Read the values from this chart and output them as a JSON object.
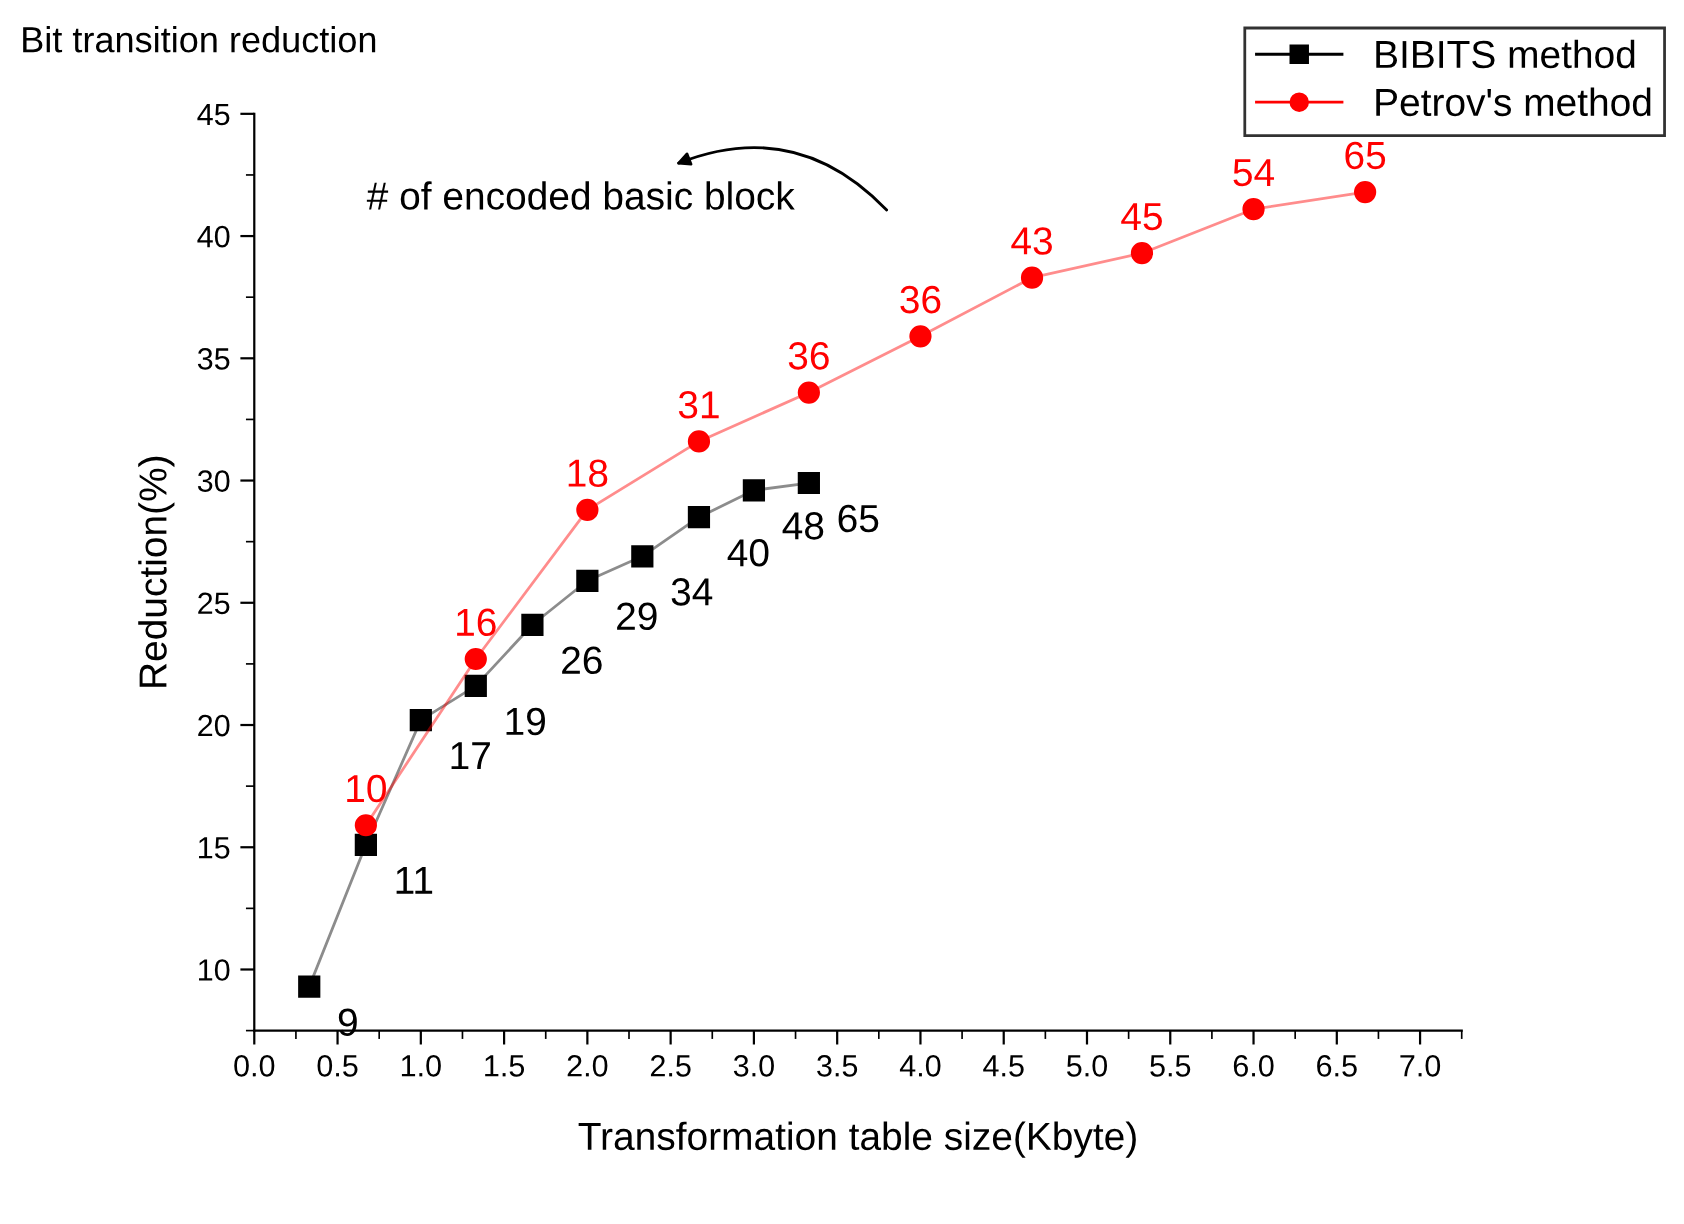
{
  "chart_data": {
    "type": "line",
    "title": "Bit transition reduction",
    "xlabel": "Transformation table size(Kbyte)",
    "ylabel": "Reduction(%)",
    "annotations": [
      "# of encoded basic block",
      {
        "text": "9",
        "x": 0.33,
        "y": 9.3
      },
      {
        "text": "11",
        "x": 0.67,
        "y": 15.1
      },
      {
        "text": "17",
        "x": 1.0,
        "y": 20.2
      },
      {
        "text": "19",
        "x": 1.33,
        "y": 21.6
      },
      {
        "text": "26",
        "x": 1.67,
        "y": 24.1
      },
      {
        "text": "29",
        "x": 2.0,
        "y": 25.9
      },
      {
        "text": "34",
        "x": 2.33,
        "y": 26.9
      },
      {
        "text": "40",
        "x": 2.67,
        "y": 28.5
      },
      {
        "text": "48",
        "x": 3.0,
        "y": 29.6
      },
      {
        "text": "65",
        "x": 3.33,
        "y": 29.9
      },
      {
        "text": "10",
        "x": 0.67,
        "y": 15.9
      },
      {
        "text": "16",
        "x": 1.33,
        "y": 22.7
      },
      {
        "text": "18",
        "x": 2.0,
        "y": 28.8
      },
      {
        "text": "31",
        "x": 2.67,
        "y": 31.6
      },
      {
        "text": "36",
        "x": 3.33,
        "y": 33.6
      },
      {
        "text": "36",
        "x": 4.0,
        "y": 35.9
      },
      {
        "text": "43",
        "x": 4.67,
        "y": 38.3
      },
      {
        "text": "45",
        "x": 5.33,
        "y": 39.3
      },
      {
        "text": "54",
        "x": 6.0,
        "y": 41.1
      },
      {
        "text": "65",
        "x": 6.67,
        "y": 41.8
      }
    ],
    "series": [
      {
        "name": "BIBITS method",
        "color": "#000000",
        "marker": "square",
        "x": [
          0.33,
          0.67,
          1.0,
          1.33,
          1.67,
          2.0,
          2.33,
          2.67,
          3.0,
          3.33
        ],
        "values": [
          9.3,
          15.1,
          20.2,
          21.6,
          24.1,
          25.9,
          26.9,
          28.5,
          29.6,
          29.9
        ]
      },
      {
        "name": "Petrov's method",
        "color": "#ff0000",
        "marker": "circle",
        "x": [
          0.67,
          1.33,
          2.0,
          2.67,
          3.33,
          4.0,
          4.67,
          5.33,
          6.0,
          6.67
        ],
        "values": [
          15.9,
          22.7,
          28.8,
          31.6,
          33.6,
          35.9,
          38.3,
          39.3,
          41.1,
          41.8
        ]
      }
    ],
    "xlim": [
      0,
      7.25
    ],
    "xticks": [
      {
        "value": 0,
        "label": "0.0"
      },
      0.5,
      {
        "value": 1,
        "label": "1.0"
      },
      1.5,
      {
        "value": 2,
        "label": "2.0"
      },
      2.5,
      {
        "value": 3,
        "label": "3.0"
      },
      3.5,
      {
        "value": 4,
        "label": "4.0"
      },
      4.5,
      {
        "value": 5,
        "label": "5.0"
      },
      5.5,
      {
        "value": 6,
        "label": "6.0"
      },
      6.5,
      {
        "value": 7,
        "label": "7.0"
      }
    ],
    "ylim": [
      7.5,
      45
    ],
    "yticks": [
      10,
      15,
      20,
      25,
      30,
      35,
      40,
      45
    ],
    "grid": false,
    "legend": "top right"
  }
}
